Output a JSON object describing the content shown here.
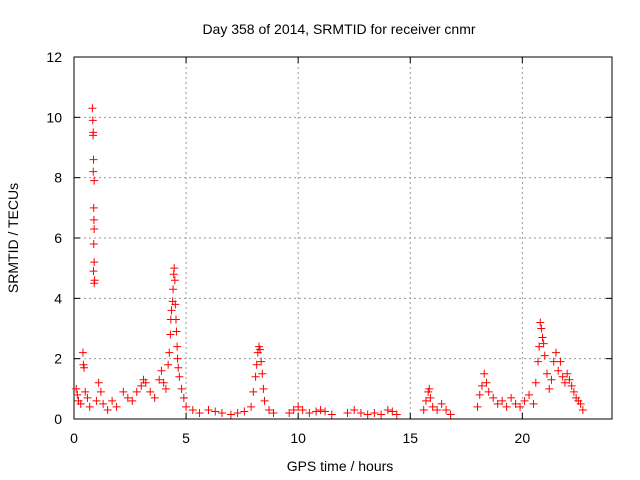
{
  "chart_data": {
    "type": "scatter",
    "title": "Day 358 of 2014, SRMTID for receiver cnmr",
    "xlabel": "GPS time / hours",
    "ylabel": "SRMTID / TECUs",
    "xlim": [
      0,
      24
    ],
    "ylim": [
      0,
      12
    ],
    "grid": true,
    "marker": "+",
    "color": "#ff0000",
    "x_ticks": [
      0,
      5,
      10,
      15,
      20
    ],
    "y_ticks": [
      0,
      2,
      4,
      6,
      8,
      10,
      12
    ],
    "x_tick_labels": [
      "0",
      "5",
      "10",
      "15",
      "20"
    ],
    "y_tick_labels": [
      "0",
      "2",
      "4",
      "6",
      "8",
      "10",
      "12"
    ],
    "series": [
      {
        "name": "SRMTID",
        "points": [
          [
            0.82,
            10.3
          ],
          [
            0.84,
            9.9
          ],
          [
            0.86,
            9.5
          ],
          [
            0.85,
            9.4
          ],
          [
            0.87,
            8.6
          ],
          [
            0.86,
            8.2
          ],
          [
            0.9,
            7.9
          ],
          [
            0.88,
            7.0
          ],
          [
            0.89,
            6.6
          ],
          [
            0.9,
            6.3
          ],
          [
            0.88,
            5.8
          ],
          [
            0.9,
            5.2
          ],
          [
            0.87,
            4.9
          ],
          [
            0.92,
            4.6
          ],
          [
            0.9,
            4.5
          ],
          [
            0.4,
            2.2
          ],
          [
            0.42,
            1.8
          ],
          [
            0.45,
            1.7
          ],
          [
            0.1,
            1.0
          ],
          [
            0.15,
            0.8
          ],
          [
            0.2,
            0.6
          ],
          [
            0.3,
            0.5
          ],
          [
            0.5,
            0.9
          ],
          [
            0.6,
            0.7
          ],
          [
            0.7,
            0.4
          ],
          [
            1.0,
            0.6
          ],
          [
            1.1,
            1.2
          ],
          [
            1.2,
            0.9
          ],
          [
            1.3,
            0.5
          ],
          [
            1.5,
            0.3
          ],
          [
            1.7,
            0.6
          ],
          [
            1.9,
            0.4
          ],
          [
            2.2,
            0.9
          ],
          [
            2.4,
            0.7
          ],
          [
            2.6,
            0.6
          ],
          [
            2.8,
            0.9
          ],
          [
            3.0,
            1.1
          ],
          [
            3.1,
            1.3
          ],
          [
            3.2,
            1.2
          ],
          [
            3.4,
            0.9
          ],
          [
            3.6,
            0.7
          ],
          [
            3.8,
            1.3
          ],
          [
            3.9,
            1.6
          ],
          [
            4.0,
            1.2
          ],
          [
            4.1,
            1.0
          ],
          [
            4.2,
            1.8
          ],
          [
            4.25,
            2.2
          ],
          [
            4.3,
            2.8
          ],
          [
            4.32,
            3.3
          ],
          [
            4.35,
            3.6
          ],
          [
            4.4,
            3.9
          ],
          [
            4.42,
            4.3
          ],
          [
            4.45,
            4.8
          ],
          [
            4.47,
            5.0
          ],
          [
            4.5,
            4.6
          ],
          [
            4.52,
            3.8
          ],
          [
            4.55,
            3.3
          ],
          [
            4.57,
            2.9
          ],
          [
            4.6,
            2.4
          ],
          [
            4.62,
            2.0
          ],
          [
            4.65,
            1.7
          ],
          [
            4.7,
            1.4
          ],
          [
            4.8,
            1.0
          ],
          [
            4.9,
            0.7
          ],
          [
            5.0,
            0.4
          ],
          [
            5.3,
            0.3
          ],
          [
            5.6,
            0.2
          ],
          [
            6.0,
            0.3
          ],
          [
            6.3,
            0.25
          ],
          [
            6.6,
            0.2
          ],
          [
            7.0,
            0.15
          ],
          [
            7.3,
            0.2
          ],
          [
            7.6,
            0.25
          ],
          [
            7.9,
            0.4
          ],
          [
            8.0,
            0.9
          ],
          [
            8.1,
            1.4
          ],
          [
            8.15,
            1.8
          ],
          [
            8.2,
            2.2
          ],
          [
            8.25,
            2.4
          ],
          [
            8.3,
            2.3
          ],
          [
            8.35,
            1.9
          ],
          [
            8.4,
            1.5
          ],
          [
            8.45,
            1.0
          ],
          [
            8.5,
            0.6
          ],
          [
            8.7,
            0.3
          ],
          [
            8.9,
            0.2
          ],
          [
            9.6,
            0.2
          ],
          [
            9.8,
            0.3
          ],
          [
            10.0,
            0.4
          ],
          [
            10.2,
            0.3
          ],
          [
            10.5,
            0.2
          ],
          [
            10.8,
            0.25
          ],
          [
            11.0,
            0.3
          ],
          [
            11.2,
            0.25
          ],
          [
            11.5,
            0.15
          ],
          [
            12.2,
            0.2
          ],
          [
            12.5,
            0.3
          ],
          [
            12.8,
            0.2
          ],
          [
            13.1,
            0.15
          ],
          [
            13.4,
            0.2
          ],
          [
            13.7,
            0.15
          ],
          [
            14.0,
            0.3
          ],
          [
            14.2,
            0.25
          ],
          [
            14.4,
            0.15
          ],
          [
            15.6,
            0.3
          ],
          [
            15.7,
            0.6
          ],
          [
            15.8,
            0.9
          ],
          [
            15.85,
            1.0
          ],
          [
            15.9,
            0.7
          ],
          [
            16.0,
            0.4
          ],
          [
            16.2,
            0.3
          ],
          [
            16.4,
            0.5
          ],
          [
            16.6,
            0.3
          ],
          [
            16.8,
            0.15
          ],
          [
            18.0,
            0.4
          ],
          [
            18.1,
            0.8
          ],
          [
            18.2,
            1.1
          ],
          [
            18.3,
            1.5
          ],
          [
            18.4,
            1.2
          ],
          [
            18.5,
            0.9
          ],
          [
            18.7,
            0.7
          ],
          [
            18.9,
            0.5
          ],
          [
            19.1,
            0.6
          ],
          [
            19.3,
            0.4
          ],
          [
            19.5,
            0.7
          ],
          [
            19.7,
            0.5
          ],
          [
            19.9,
            0.4
          ],
          [
            20.1,
            0.6
          ],
          [
            20.3,
            0.8
          ],
          [
            20.5,
            0.5
          ],
          [
            20.6,
            1.2
          ],
          [
            20.7,
            1.9
          ],
          [
            20.75,
            2.4
          ],
          [
            20.8,
            3.2
          ],
          [
            20.85,
            3.0
          ],
          [
            20.9,
            2.7
          ],
          [
            20.95,
            2.5
          ],
          [
            21.0,
            2.1
          ],
          [
            21.1,
            1.5
          ],
          [
            21.2,
            1.0
          ],
          [
            21.3,
            1.3
          ],
          [
            21.4,
            1.9
          ],
          [
            21.5,
            2.2
          ],
          [
            21.6,
            1.6
          ],
          [
            21.7,
            1.9
          ],
          [
            21.8,
            1.4
          ],
          [
            21.9,
            1.2
          ],
          [
            22.0,
            1.5
          ],
          [
            22.1,
            1.3
          ],
          [
            22.2,
            1.1
          ],
          [
            22.3,
            0.9
          ],
          [
            22.4,
            0.7
          ],
          [
            22.5,
            0.6
          ],
          [
            22.6,
            0.5
          ],
          [
            22.7,
            0.3
          ]
        ]
      }
    ]
  }
}
